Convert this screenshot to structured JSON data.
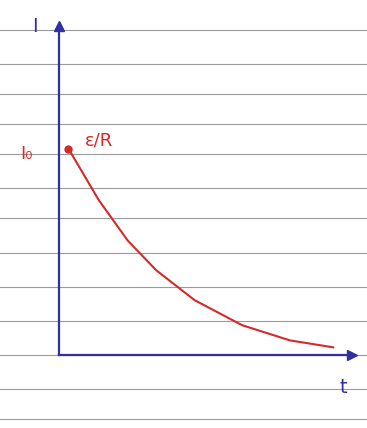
{
  "chart_data": {
    "type": "line",
    "x_label": "t",
    "y_label": "I",
    "annotations": [
      "I₀",
      "ε/R"
    ],
    "x": [
      0.33,
      1.37,
      2.35,
      3.32,
      4.63,
      6.25,
      7.88,
      9.35
    ],
    "values": [
      6.27,
      4.7,
      3.48,
      2.58,
      1.67,
      0.91,
      0.45,
      0.24
    ],
    "color": "#d42a2a",
    "xlim": [
      0,
      10
    ],
    "ylim": [
      0,
      10
    ],
    "xticks": [],
    "yticks": [],
    "tick_labels": false,
    "grid": false
  }
}
